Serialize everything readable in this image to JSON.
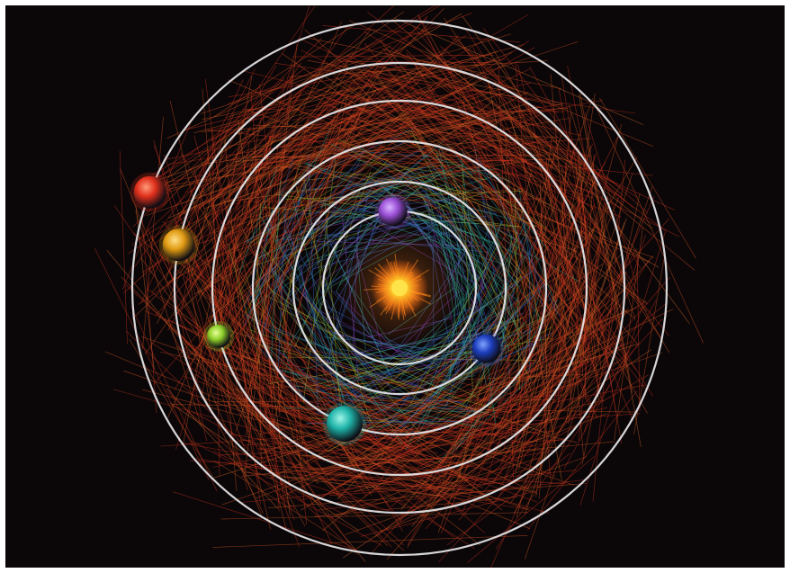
{
  "scene": {
    "background": "#0b0709",
    "orbit_color": "#e8e8ea",
    "star": {
      "name": "central-star",
      "core_color": "#ffe34a",
      "glow_color": "#ff8a1a"
    },
    "planets": [
      {
        "name": "planet-purple",
        "color": "#9b4fd6",
        "highlight": "#d9b3ff"
      },
      {
        "name": "planet-blue",
        "color": "#1d3fbf",
        "highlight": "#7fa3ff"
      },
      {
        "name": "planet-teal",
        "color": "#1fb3a8",
        "highlight": "#9ff5e8"
      },
      {
        "name": "planet-lime",
        "color": "#8fcf2a",
        "highlight": "#e6ff9a"
      },
      {
        "name": "planet-amber",
        "color": "#e09a12",
        "highlight": "#ffe08a"
      },
      {
        "name": "planet-red",
        "color": "#e0301c",
        "highlight": "#ff9a7a"
      }
    ],
    "trail_colors": [
      "#c8321e",
      "#d0521f",
      "#a8b82a",
      "#2fa898",
      "#3d6fd0",
      "#8a45c8",
      "#d66a2a"
    ]
  }
}
